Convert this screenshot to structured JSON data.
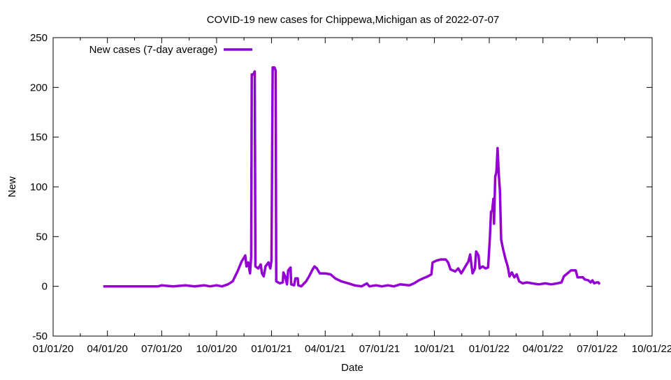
{
  "chart_data": {
    "type": "line",
    "title": "COVID-19 new cases for Chippewa,Michigan as of 2022-07-07",
    "xlabel": "Date",
    "ylabel": "New",
    "xlim": [
      "2020-01-01",
      "2022-10-01"
    ],
    "ylim": [
      -50,
      250
    ],
    "yticks": [
      -50,
      0,
      50,
      100,
      150,
      200,
      250
    ],
    "xticks": [
      "2020-01-01",
      "2020-04-01",
      "2020-07-01",
      "2020-10-01",
      "2021-01-01",
      "2021-04-01",
      "2021-07-01",
      "2021-10-01",
      "2022-01-01",
      "2022-04-01",
      "2022-07-01",
      "2022-10-01"
    ],
    "xtick_labels": [
      "01/01/20",
      "04/01/20",
      "07/01/20",
      "10/01/20",
      "01/01/21",
      "04/01/21",
      "07/01/21",
      "10/01/21",
      "01/01/22",
      "04/01/22",
      "07/01/22",
      "10/01/22"
    ],
    "grid": false,
    "legend_position": "top-left",
    "series": [
      {
        "name": "New cases (7-day average)",
        "color": "#9400d3",
        "points": [
          [
            "2020-03-25",
            0
          ],
          [
            "2020-05-01",
            0
          ],
          [
            "2020-06-25",
            0
          ],
          [
            "2020-07-01",
            1
          ],
          [
            "2020-07-20",
            0
          ],
          [
            "2020-08-10",
            1
          ],
          [
            "2020-08-25",
            0
          ],
          [
            "2020-09-10",
            1
          ],
          [
            "2020-09-20",
            0
          ],
          [
            "2020-10-01",
            1
          ],
          [
            "2020-10-10",
            0
          ],
          [
            "2020-10-20",
            2
          ],
          [
            "2020-10-28",
            5
          ],
          [
            "2020-11-05",
            15
          ],
          [
            "2020-11-12",
            25
          ],
          [
            "2020-11-18",
            31
          ],
          [
            "2020-11-20",
            20
          ],
          [
            "2020-11-23",
            24
          ],
          [
            "2020-11-26",
            13
          ],
          [
            "2020-11-28",
            30
          ],
          [
            "2020-11-29",
            213
          ],
          [
            "2020-12-02",
            213
          ],
          [
            "2020-12-03",
            215
          ],
          [
            "2020-12-04",
            216
          ],
          [
            "2020-12-05",
            20
          ],
          [
            "2020-12-10",
            18
          ],
          [
            "2020-12-14",
            22
          ],
          [
            "2020-12-16",
            13
          ],
          [
            "2020-12-19",
            10
          ],
          [
            "2020-12-22",
            20
          ],
          [
            "2020-12-27",
            24
          ],
          [
            "2020-12-30",
            18
          ],
          [
            "2021-01-01",
            26
          ],
          [
            "2021-01-03",
            220
          ],
          [
            "2021-01-06",
            220
          ],
          [
            "2021-01-08",
            217
          ],
          [
            "2021-01-09",
            5
          ],
          [
            "2021-01-15",
            3
          ],
          [
            "2021-01-20",
            4
          ],
          [
            "2021-01-21",
            14
          ],
          [
            "2021-01-24",
            10
          ],
          [
            "2021-01-27",
            2
          ],
          [
            "2021-01-29",
            16
          ],
          [
            "2021-02-02",
            19
          ],
          [
            "2021-02-03",
            2
          ],
          [
            "2021-02-08",
            1
          ],
          [
            "2021-02-10",
            8
          ],
          [
            "2021-02-14",
            8
          ],
          [
            "2021-02-15",
            1
          ],
          [
            "2021-02-20",
            0
          ],
          [
            "2021-02-28",
            5
          ],
          [
            "2021-03-05",
            10
          ],
          [
            "2021-03-10",
            16
          ],
          [
            "2021-03-14",
            20
          ],
          [
            "2021-03-18",
            18
          ],
          [
            "2021-03-23",
            13
          ],
          [
            "2021-04-01",
            13
          ],
          [
            "2021-04-10",
            12
          ],
          [
            "2021-04-18",
            8
          ],
          [
            "2021-04-28",
            5
          ],
          [
            "2021-05-10",
            3
          ],
          [
            "2021-05-20",
            1
          ],
          [
            "2021-06-01",
            0
          ],
          [
            "2021-06-10",
            3
          ],
          [
            "2021-06-14",
            0
          ],
          [
            "2021-06-25",
            1
          ],
          [
            "2021-07-05",
            0
          ],
          [
            "2021-07-15",
            1
          ],
          [
            "2021-07-25",
            0
          ],
          [
            "2021-08-05",
            2
          ],
          [
            "2021-08-20",
            1
          ],
          [
            "2021-08-28",
            3
          ],
          [
            "2021-09-05",
            6
          ],
          [
            "2021-09-12",
            8
          ],
          [
            "2021-09-20",
            10
          ],
          [
            "2021-09-26",
            12
          ],
          [
            "2021-09-28",
            24
          ],
          [
            "2021-10-05",
            26
          ],
          [
            "2021-10-12",
            27
          ],
          [
            "2021-10-20",
            27
          ],
          [
            "2021-10-24",
            24
          ],
          [
            "2021-10-28",
            17
          ],
          [
            "2021-11-05",
            15
          ],
          [
            "2021-11-10",
            18
          ],
          [
            "2021-11-15",
            13
          ],
          [
            "2021-11-22",
            20
          ],
          [
            "2021-11-27",
            25
          ],
          [
            "2021-11-30",
            32
          ],
          [
            "2021-12-02",
            22
          ],
          [
            "2021-12-04",
            13
          ],
          [
            "2021-12-08",
            18
          ],
          [
            "2021-12-10",
            35
          ],
          [
            "2021-12-14",
            31
          ],
          [
            "2021-12-16",
            18
          ],
          [
            "2021-12-21",
            20
          ],
          [
            "2021-12-26",
            18
          ],
          [
            "2021-12-30",
            19
          ],
          [
            "2022-01-02",
            48
          ],
          [
            "2022-01-04",
            75
          ],
          [
            "2022-01-06",
            76
          ],
          [
            "2022-01-08",
            88
          ],
          [
            "2022-01-09",
            63
          ],
          [
            "2022-01-11",
            110
          ],
          [
            "2022-01-13",
            115
          ],
          [
            "2022-01-15",
            139
          ],
          [
            "2022-01-17",
            113
          ],
          [
            "2022-01-19",
            95
          ],
          [
            "2022-01-21",
            47
          ],
          [
            "2022-01-24",
            38
          ],
          [
            "2022-01-28",
            28
          ],
          [
            "2022-02-01",
            20
          ],
          [
            "2022-02-04",
            10
          ],
          [
            "2022-02-08",
            14
          ],
          [
            "2022-02-12",
            9
          ],
          [
            "2022-02-16",
            12
          ],
          [
            "2022-02-20",
            5
          ],
          [
            "2022-02-26",
            3
          ],
          [
            "2022-03-05",
            4
          ],
          [
            "2022-03-14",
            3
          ],
          [
            "2022-03-25",
            2
          ],
          [
            "2022-04-05",
            3
          ],
          [
            "2022-04-15",
            2
          ],
          [
            "2022-04-25",
            3
          ],
          [
            "2022-05-02",
            4
          ],
          [
            "2022-05-06",
            10
          ],
          [
            "2022-05-12",
            13
          ],
          [
            "2022-05-18",
            16
          ],
          [
            "2022-05-26",
            16
          ],
          [
            "2022-05-29",
            9
          ],
          [
            "2022-06-07",
            9
          ],
          [
            "2022-06-10",
            7
          ],
          [
            "2022-06-16",
            6
          ],
          [
            "2022-06-20",
            4
          ],
          [
            "2022-06-23",
            6
          ],
          [
            "2022-06-26",
            3
          ],
          [
            "2022-06-30",
            4
          ],
          [
            "2022-07-03",
            4
          ],
          [
            "2022-07-05",
            2
          ]
        ]
      }
    ]
  }
}
